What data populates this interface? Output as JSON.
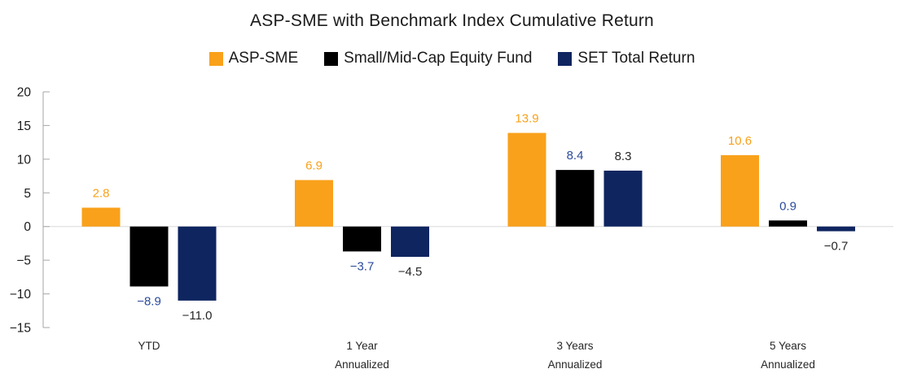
{
  "chart_data": {
    "type": "bar",
    "title": "ASP-SME with Benchmark Index Cumulative Return",
    "categories": [
      "YTD",
      "1 Year Annualized",
      "3 Years Annualized",
      "5 Years Annualized"
    ],
    "category_lines": [
      [
        "YTD"
      ],
      [
        "1 Year",
        "Annualized"
      ],
      [
        "3 Years",
        "Annualized"
      ],
      [
        "5 Years",
        "Annualized"
      ]
    ],
    "series": [
      {
        "name": "ASP-SME",
        "color": "#F9A11B",
        "label_color": "#F9A11B",
        "values": [
          2.8,
          6.9,
          13.9,
          10.6
        ]
      },
      {
        "name": "Small/Mid-Cap Equity Fund",
        "color": "#000000",
        "label_color": "#2B4B9B",
        "values": [
          -8.9,
          -3.7,
          8.4,
          0.9
        ]
      },
      {
        "name": "SET Total Return",
        "color": "#0F2560",
        "label_color": "#262626",
        "values": [
          -11.0,
          -4.5,
          8.3,
          -0.7
        ]
      }
    ],
    "yticks": [
      20,
      15,
      10,
      5,
      0,
      -5,
      -10,
      -15
    ],
    "ylim": [
      -15,
      20
    ],
    "grid": "zero-baseline-only",
    "legend_position": "top",
    "value_label_decimals": 1,
    "axis_color": "#a6a6a6",
    "zero_line_color": "#d9d9d9",
    "tick_label_color": "#1a1a1a",
    "category_label_color": "#262626"
  }
}
